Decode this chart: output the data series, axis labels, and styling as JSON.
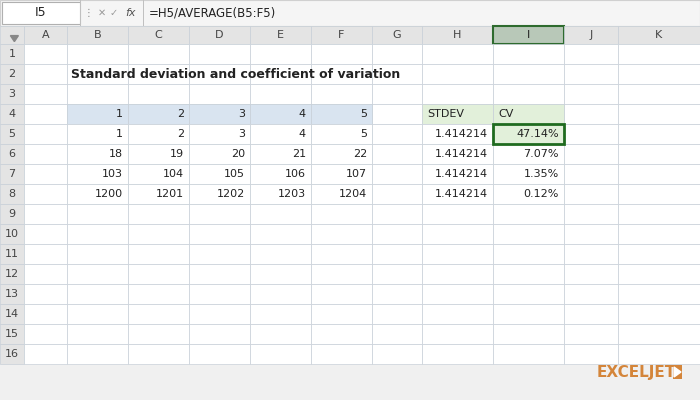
{
  "title": "Standard deviation and coefficient of variation",
  "formula_bar_cell": "I5",
  "formula_bar_formula": "=H5/AVERAGE(B5:F5)",
  "col_headers": [
    "A",
    "B",
    "C",
    "D",
    "E",
    "F",
    "G",
    "H",
    "I",
    "J",
    "K"
  ],
  "row_headers": [
    "1",
    "2",
    "3",
    "4",
    "5",
    "6",
    "7",
    "8",
    "9",
    "10",
    "11",
    "12",
    "13",
    "14",
    "15",
    "16"
  ],
  "data_table": {
    "header_row": [
      1,
      2,
      3,
      4,
      5
    ],
    "rows": [
      [
        1,
        2,
        3,
        4,
        5
      ],
      [
        18,
        19,
        20,
        21,
        22
      ],
      [
        103,
        104,
        105,
        106,
        107
      ],
      [
        1200,
        1201,
        1202,
        1203,
        1204
      ]
    ]
  },
  "stdev_cv_table": {
    "headers": [
      "STDEV",
      "CV"
    ],
    "rows": [
      [
        "1.414214",
        "47.14%"
      ],
      [
        "1.414214",
        "7.07%"
      ],
      [
        "1.414214",
        "1.35%"
      ],
      [
        "1.414214",
        "0.12%"
      ]
    ]
  },
  "bg_color": "#f0f0f0",
  "cell_bg": "#ffffff",
  "row_col_header_bg": "#e4e4e4",
  "col_I_header_bg": "#b8c8b8",
  "col_I_header_border": "#2e6b2e",
  "data_header_bg": "#d9e4f0",
  "stdev_cv_header_bg": "#e2f0da",
  "cv_selected_bg": "#e2f0da",
  "cv_selected_border": "#1f6b1f",
  "cell_border": "#c8d0d8",
  "formula_bar_bg": "#f5f5f5",
  "formula_bar_border": "#d0d0d0",
  "exceljet_text": "#d4853a",
  "exceljet_icon": "#d4853a",
  "title_fontsize": 9,
  "cell_fontsize": 8,
  "header_fontsize": 8,
  "formula_fontsize": 8.5
}
